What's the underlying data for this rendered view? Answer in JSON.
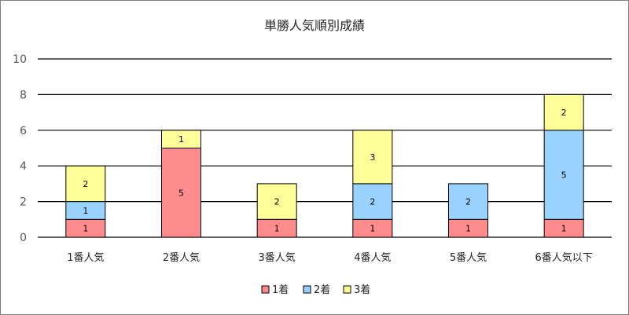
{
  "chart_data": {
    "type": "bar",
    "stacked": true,
    "title": "単勝人気順別成績",
    "xlabel": "",
    "ylabel": "",
    "ylim": [
      0,
      10
    ],
    "yticks": [
      0,
      2,
      4,
      6,
      8,
      10
    ],
    "grid": true,
    "legend_position": "bottom",
    "categories": [
      "1番人気",
      "2番人気",
      "3番人気",
      "4番人気",
      "5番人気",
      "6番人気以下"
    ],
    "series": [
      {
        "name": "1着",
        "color": "#ff8c8c",
        "values": [
          1,
          5,
          1,
          1,
          1,
          1
        ]
      },
      {
        "name": "2着",
        "color": "#99d2ff",
        "values": [
          1,
          0,
          0,
          2,
          2,
          5
        ]
      },
      {
        "name": "3着",
        "color": "#ffff99",
        "values": [
          2,
          1,
          2,
          3,
          0,
          2
        ]
      }
    ]
  }
}
